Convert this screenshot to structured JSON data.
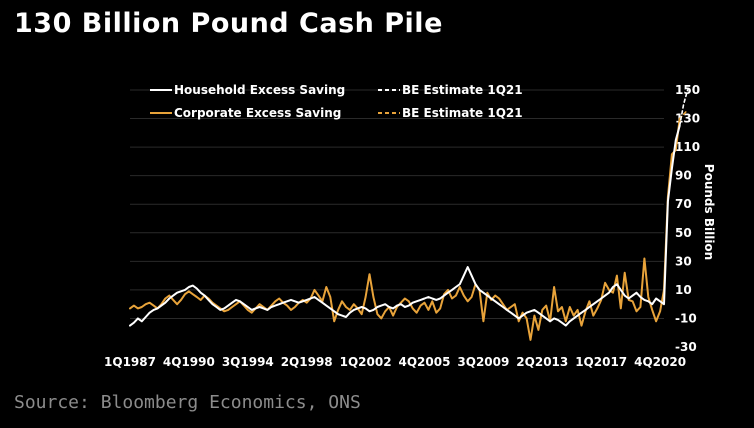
{
  "title": "130 Billion Pound Cash Pile",
  "source": "Source: Bloomberg Economics, ONS",
  "chart_data": {
    "type": "line",
    "title": "130 Billion Pound Cash Pile",
    "xlabel": "",
    "ylabel": "Pounds Billion",
    "y_axis_side": "right",
    "ylim": [
      -30,
      150
    ],
    "yticks": [
      -30,
      -10,
      10,
      30,
      50,
      70,
      90,
      110,
      130,
      150
    ],
    "xticks": [
      "1Q1987",
      "4Q1990",
      "3Q1994",
      "2Q1998",
      "1Q2002",
      "4Q2005",
      "3Q2009",
      "2Q2013",
      "1Q2017",
      "4Q2020"
    ],
    "grid": "horizontal",
    "legend": "top-left",
    "x_start": "1Q1987",
    "x_end": "1Q2021",
    "series": [
      {
        "name": "Household Excess Saving",
        "color": "#ffffff",
        "style": "solid",
        "points": [
          [
            "1Q1987",
            -15
          ],
          [
            "2Q1987",
            -13
          ],
          [
            "3Q1987",
            -10
          ],
          [
            "4Q1987",
            -12
          ],
          [
            "1Q1988",
            -9
          ],
          [
            "2Q1988",
            -6
          ],
          [
            "3Q1988",
            -4
          ],
          [
            "4Q1988",
            -3
          ],
          [
            "1Q1989",
            -1
          ],
          [
            "2Q1989",
            1
          ],
          [
            "3Q1989",
            4
          ],
          [
            "4Q1989",
            6
          ],
          [
            "1Q1990",
            8
          ],
          [
            "2Q1990",
            9
          ],
          [
            "3Q1990",
            10
          ],
          [
            "4Q1990",
            12
          ],
          [
            "1Q1991",
            13
          ],
          [
            "2Q1991",
            11
          ],
          [
            "3Q1991",
            8
          ],
          [
            "4Q1991",
            6
          ],
          [
            "1Q1992",
            3
          ],
          [
            "2Q1992",
            0
          ],
          [
            "3Q1992",
            -2
          ],
          [
            "4Q1992",
            -4
          ],
          [
            "1Q1993",
            -3
          ],
          [
            "2Q1993",
            -1
          ],
          [
            "3Q1993",
            1
          ],
          [
            "4Q1993",
            3
          ],
          [
            "1Q1994",
            2
          ],
          [
            "2Q1994",
            0
          ],
          [
            "3Q1994",
            -2
          ],
          [
            "4Q1994",
            -4
          ],
          [
            "1Q1995",
            -3
          ],
          [
            "2Q1995",
            -2
          ],
          [
            "3Q1995",
            -3
          ],
          [
            "4Q1995",
            -4
          ],
          [
            "1Q1996",
            -2
          ],
          [
            "2Q1996",
            -1
          ],
          [
            "3Q1996",
            0
          ],
          [
            "4Q1996",
            1
          ],
          [
            "1Q1997",
            2
          ],
          [
            "2Q1997",
            3
          ],
          [
            "3Q1997",
            2
          ],
          [
            "4Q1997",
            1
          ],
          [
            "1Q1998",
            2
          ],
          [
            "2Q1998",
            3
          ],
          [
            "3Q1998",
            4
          ],
          [
            "4Q1998",
            5
          ],
          [
            "1Q1999",
            3
          ],
          [
            "2Q1999",
            1
          ],
          [
            "3Q1999",
            -1
          ],
          [
            "4Q1999",
            -3
          ],
          [
            "1Q2000",
            -5
          ],
          [
            "2Q2000",
            -7
          ],
          [
            "3Q2000",
            -8
          ],
          [
            "4Q2000",
            -9
          ],
          [
            "1Q2001",
            -6
          ],
          [
            "2Q2001",
            -4
          ],
          [
            "3Q2001",
            -3
          ],
          [
            "4Q2001",
            -2
          ],
          [
            "1Q2002",
            -3
          ],
          [
            "2Q2002",
            -5
          ],
          [
            "3Q2002",
            -4
          ],
          [
            "4Q2002",
            -2
          ],
          [
            "1Q2003",
            -1
          ],
          [
            "2Q2003",
            0
          ],
          [
            "3Q2003",
            -2
          ],
          [
            "4Q2003",
            -3
          ],
          [
            "1Q2004",
            -1
          ],
          [
            "2Q2004",
            0
          ],
          [
            "3Q2004",
            -2
          ],
          [
            "4Q2004",
            -1
          ],
          [
            "1Q2005",
            1
          ],
          [
            "2Q2005",
            2
          ],
          [
            "3Q2005",
            3
          ],
          [
            "4Q2005",
            4
          ],
          [
            "1Q2006",
            5
          ],
          [
            "2Q2006",
            4
          ],
          [
            "3Q2006",
            3
          ],
          [
            "4Q2006",
            4
          ],
          [
            "1Q2007",
            6
          ],
          [
            "2Q2007",
            8
          ],
          [
            "3Q2007",
            10
          ],
          [
            "4Q2007",
            12
          ],
          [
            "1Q2008",
            14
          ],
          [
            "2Q2008",
            20
          ],
          [
            "3Q2008",
            26
          ],
          [
            "4Q2008",
            20
          ],
          [
            "1Q2009",
            14
          ],
          [
            "2Q2009",
            10
          ],
          [
            "3Q2009",
            8
          ],
          [
            "4Q2009",
            6
          ],
          [
            "1Q2010",
            4
          ],
          [
            "2Q2010",
            2
          ],
          [
            "3Q2010",
            0
          ],
          [
            "4Q2010",
            -2
          ],
          [
            "1Q2011",
            -4
          ],
          [
            "2Q2011",
            -6
          ],
          [
            "3Q2011",
            -8
          ],
          [
            "4Q2011",
            -10
          ],
          [
            "1Q2012",
            -8
          ],
          [
            "2Q2012",
            -6
          ],
          [
            "3Q2012",
            -5
          ],
          [
            "4Q2012",
            -4
          ],
          [
            "1Q2013",
            -6
          ],
          [
            "2Q2013",
            -8
          ],
          [
            "3Q2013",
            -10
          ],
          [
            "4Q2013",
            -12
          ],
          [
            "1Q2014",
            -10
          ],
          [
            "2Q2014",
            -11
          ],
          [
            "3Q2014",
            -13
          ],
          [
            "4Q2014",
            -15
          ],
          [
            "1Q2015",
            -12
          ],
          [
            "2Q2015",
            -10
          ],
          [
            "3Q2015",
            -8
          ],
          [
            "4Q2015",
            -6
          ],
          [
            "1Q2016",
            -4
          ],
          [
            "2Q2016",
            -2
          ],
          [
            "3Q2016",
            0
          ],
          [
            "4Q2016",
            2
          ],
          [
            "1Q2017",
            4
          ],
          [
            "2Q2017",
            6
          ],
          [
            "3Q2017",
            8
          ],
          [
            "4Q2017",
            12
          ],
          [
            "1Q2018",
            14
          ],
          [
            "2Q2018",
            10
          ],
          [
            "3Q2018",
            6
          ],
          [
            "4Q2018",
            4
          ],
          [
            "1Q2019",
            6
          ],
          [
            "2Q2019",
            8
          ],
          [
            "3Q2019",
            5
          ],
          [
            "4Q2019",
            3
          ],
          [
            "1Q2020",
            2
          ],
          [
            "2Q2020",
            0
          ],
          [
            "3Q2020",
            4
          ],
          [
            "4Q2020",
            2
          ],
          [
            "1Q2021",
            0
          ],
          [
            "2Q2021",
            72
          ],
          [
            "3Q2021",
            95
          ],
          [
            "4Q2021",
            115
          ],
          [
            "1Q2022",
            125
          ]
        ]
      },
      {
        "name": "BE Estimate 1Q21",
        "color": "#ffffff",
        "style": "dashed",
        "points": [
          [
            "1Q2022",
            125
          ],
          [
            "2Q2022",
            140
          ],
          [
            "3Q2022",
            150
          ]
        ]
      },
      {
        "name": "Corporate Excess Saving",
        "color": "#e8a33a",
        "style": "solid",
        "points": [
          [
            "1Q1987",
            -3
          ],
          [
            "2Q1987",
            -1
          ],
          [
            "3Q1987",
            -3
          ],
          [
            "4Q1987",
            -2
          ],
          [
            "1Q1988",
            0
          ],
          [
            "2Q1988",
            1
          ],
          [
            "3Q1988",
            -1
          ],
          [
            "4Q1988",
            -3
          ],
          [
            "1Q1989",
            0
          ],
          [
            "2Q1989",
            4
          ],
          [
            "3Q1989",
            6
          ],
          [
            "4Q1989",
            3
          ],
          [
            "1Q1990",
            0
          ],
          [
            "2Q1990",
            3
          ],
          [
            "3Q1990",
            7
          ],
          [
            "4Q1990",
            9
          ],
          [
            "1Q1991",
            7
          ],
          [
            "2Q1991",
            5
          ],
          [
            "3Q1991",
            3
          ],
          [
            "4Q1991",
            6
          ],
          [
            "1Q1992",
            4
          ],
          [
            "2Q1992",
            1
          ],
          [
            "3Q1992",
            -1
          ],
          [
            "4Q1992",
            -3
          ],
          [
            "1Q1993",
            -5
          ],
          [
            "2Q1993",
            -4
          ],
          [
            "3Q1993",
            -2
          ],
          [
            "4Q1993",
            0
          ],
          [
            "1Q1994",
            2
          ],
          [
            "2Q1994",
            -1
          ],
          [
            "3Q1994",
            -4
          ],
          [
            "4Q1994",
            -6
          ],
          [
            "1Q1995",
            -3
          ],
          [
            "2Q1995",
            0
          ],
          [
            "3Q1995",
            -2
          ],
          [
            "4Q1995",
            -4
          ],
          [
            "1Q1996",
            -1
          ],
          [
            "2Q1996",
            2
          ],
          [
            "3Q1996",
            4
          ],
          [
            "4Q1996",
            1
          ],
          [
            "1Q1997",
            -1
          ],
          [
            "2Q1997",
            -4
          ],
          [
            "3Q1997",
            -2
          ],
          [
            "4Q1997",
            1
          ],
          [
            "1Q1998",
            3
          ],
          [
            "2Q1998",
            1
          ],
          [
            "3Q1998",
            4
          ],
          [
            "4Q1998",
            10
          ],
          [
            "1Q1999",
            6
          ],
          [
            "2Q1999",
            2
          ],
          [
            "3Q1999",
            12
          ],
          [
            "4Q1999",
            5
          ],
          [
            "1Q2000",
            -12
          ],
          [
            "2Q2000",
            -4
          ],
          [
            "3Q2000",
            2
          ],
          [
            "4Q2000",
            -2
          ],
          [
            "1Q2001",
            -4
          ],
          [
            "2Q2001",
            0
          ],
          [
            "3Q2001",
            -3
          ],
          [
            "4Q2001",
            -7
          ],
          [
            "1Q2002",
            5
          ],
          [
            "2Q2002",
            21
          ],
          [
            "3Q2002",
            5
          ],
          [
            "4Q2002",
            -7
          ],
          [
            "1Q2003",
            -10
          ],
          [
            "2Q2003",
            -5
          ],
          [
            "3Q2003",
            -2
          ],
          [
            "4Q2003",
            -8
          ],
          [
            "1Q2004",
            -2
          ],
          [
            "2Q2004",
            1
          ],
          [
            "3Q2004",
            4
          ],
          [
            "4Q2004",
            2
          ],
          [
            "1Q2005",
            -3
          ],
          [
            "2Q2005",
            -6
          ],
          [
            "3Q2005",
            -1
          ],
          [
            "4Q2005",
            1
          ],
          [
            "1Q2006",
            -4
          ],
          [
            "2Q2006",
            2
          ],
          [
            "3Q2006",
            -6
          ],
          [
            "4Q2006",
            -3
          ],
          [
            "1Q2007",
            7
          ],
          [
            "2Q2007",
            10
          ],
          [
            "3Q2007",
            4
          ],
          [
            "4Q2007",
            6
          ],
          [
            "1Q2008",
            12
          ],
          [
            "2Q2008",
            6
          ],
          [
            "3Q2008",
            2
          ],
          [
            "4Q2008",
            5
          ],
          [
            "1Q2009",
            14
          ],
          [
            "2Q2009",
            10
          ],
          [
            "3Q2009",
            -12
          ],
          [
            "4Q2009",
            8
          ],
          [
            "1Q2010",
            3
          ],
          [
            "2Q2010",
            6
          ],
          [
            "3Q2010",
            4
          ],
          [
            "4Q2010",
            0
          ],
          [
            "1Q2011",
            -4
          ],
          [
            "2Q2011",
            -2
          ],
          [
            "3Q2011",
            0
          ],
          [
            "4Q2011",
            -12
          ],
          [
            "1Q2012",
            -6
          ],
          [
            "2Q2012",
            -10
          ],
          [
            "3Q2012",
            -25
          ],
          [
            "4Q2012",
            -8
          ],
          [
            "1Q2013",
            -18
          ],
          [
            "2Q2013",
            -4
          ],
          [
            "3Q2013",
            -1
          ],
          [
            "4Q2013",
            -12
          ],
          [
            "1Q2014",
            12
          ],
          [
            "2Q2014",
            -5
          ],
          [
            "3Q2014",
            -2
          ],
          [
            "4Q2014",
            -12
          ],
          [
            "1Q2015",
            -2
          ],
          [
            "2Q2015",
            -8
          ],
          [
            "3Q2015",
            -4
          ],
          [
            "4Q2015",
            -15
          ],
          [
            "1Q2016",
            -5
          ],
          [
            "2Q2016",
            2
          ],
          [
            "3Q2016",
            -8
          ],
          [
            "4Q2016",
            -3
          ],
          [
            "1Q2017",
            3
          ],
          [
            "2Q2017",
            15
          ],
          [
            "3Q2017",
            10
          ],
          [
            "4Q2017",
            8
          ],
          [
            "1Q2018",
            20
          ],
          [
            "2Q2018",
            -3
          ],
          [
            "3Q2018",
            22
          ],
          [
            "4Q2018",
            3
          ],
          [
            "1Q2019",
            2
          ],
          [
            "2Q2019",
            -5
          ],
          [
            "3Q2019",
            -2
          ],
          [
            "4Q2019",
            32
          ],
          [
            "1Q2020",
            5
          ],
          [
            "2Q2020",
            -4
          ],
          [
            "3Q2020",
            -12
          ],
          [
            "4Q2020",
            -5
          ],
          [
            "1Q2021",
            10
          ],
          [
            "2Q2021",
            75
          ],
          [
            "3Q2021",
            105
          ],
          [
            "4Q2021",
            108
          ],
          [
            "1Q2022",
            130
          ]
        ]
      },
      {
        "name": "BE Estimate 1Q21",
        "color": "#e8a33a",
        "style": "dashed",
        "points": [
          [
            "1Q2022",
            130
          ],
          [
            "2Q2022",
            133
          ],
          [
            "3Q2022",
            136
          ]
        ]
      }
    ]
  }
}
